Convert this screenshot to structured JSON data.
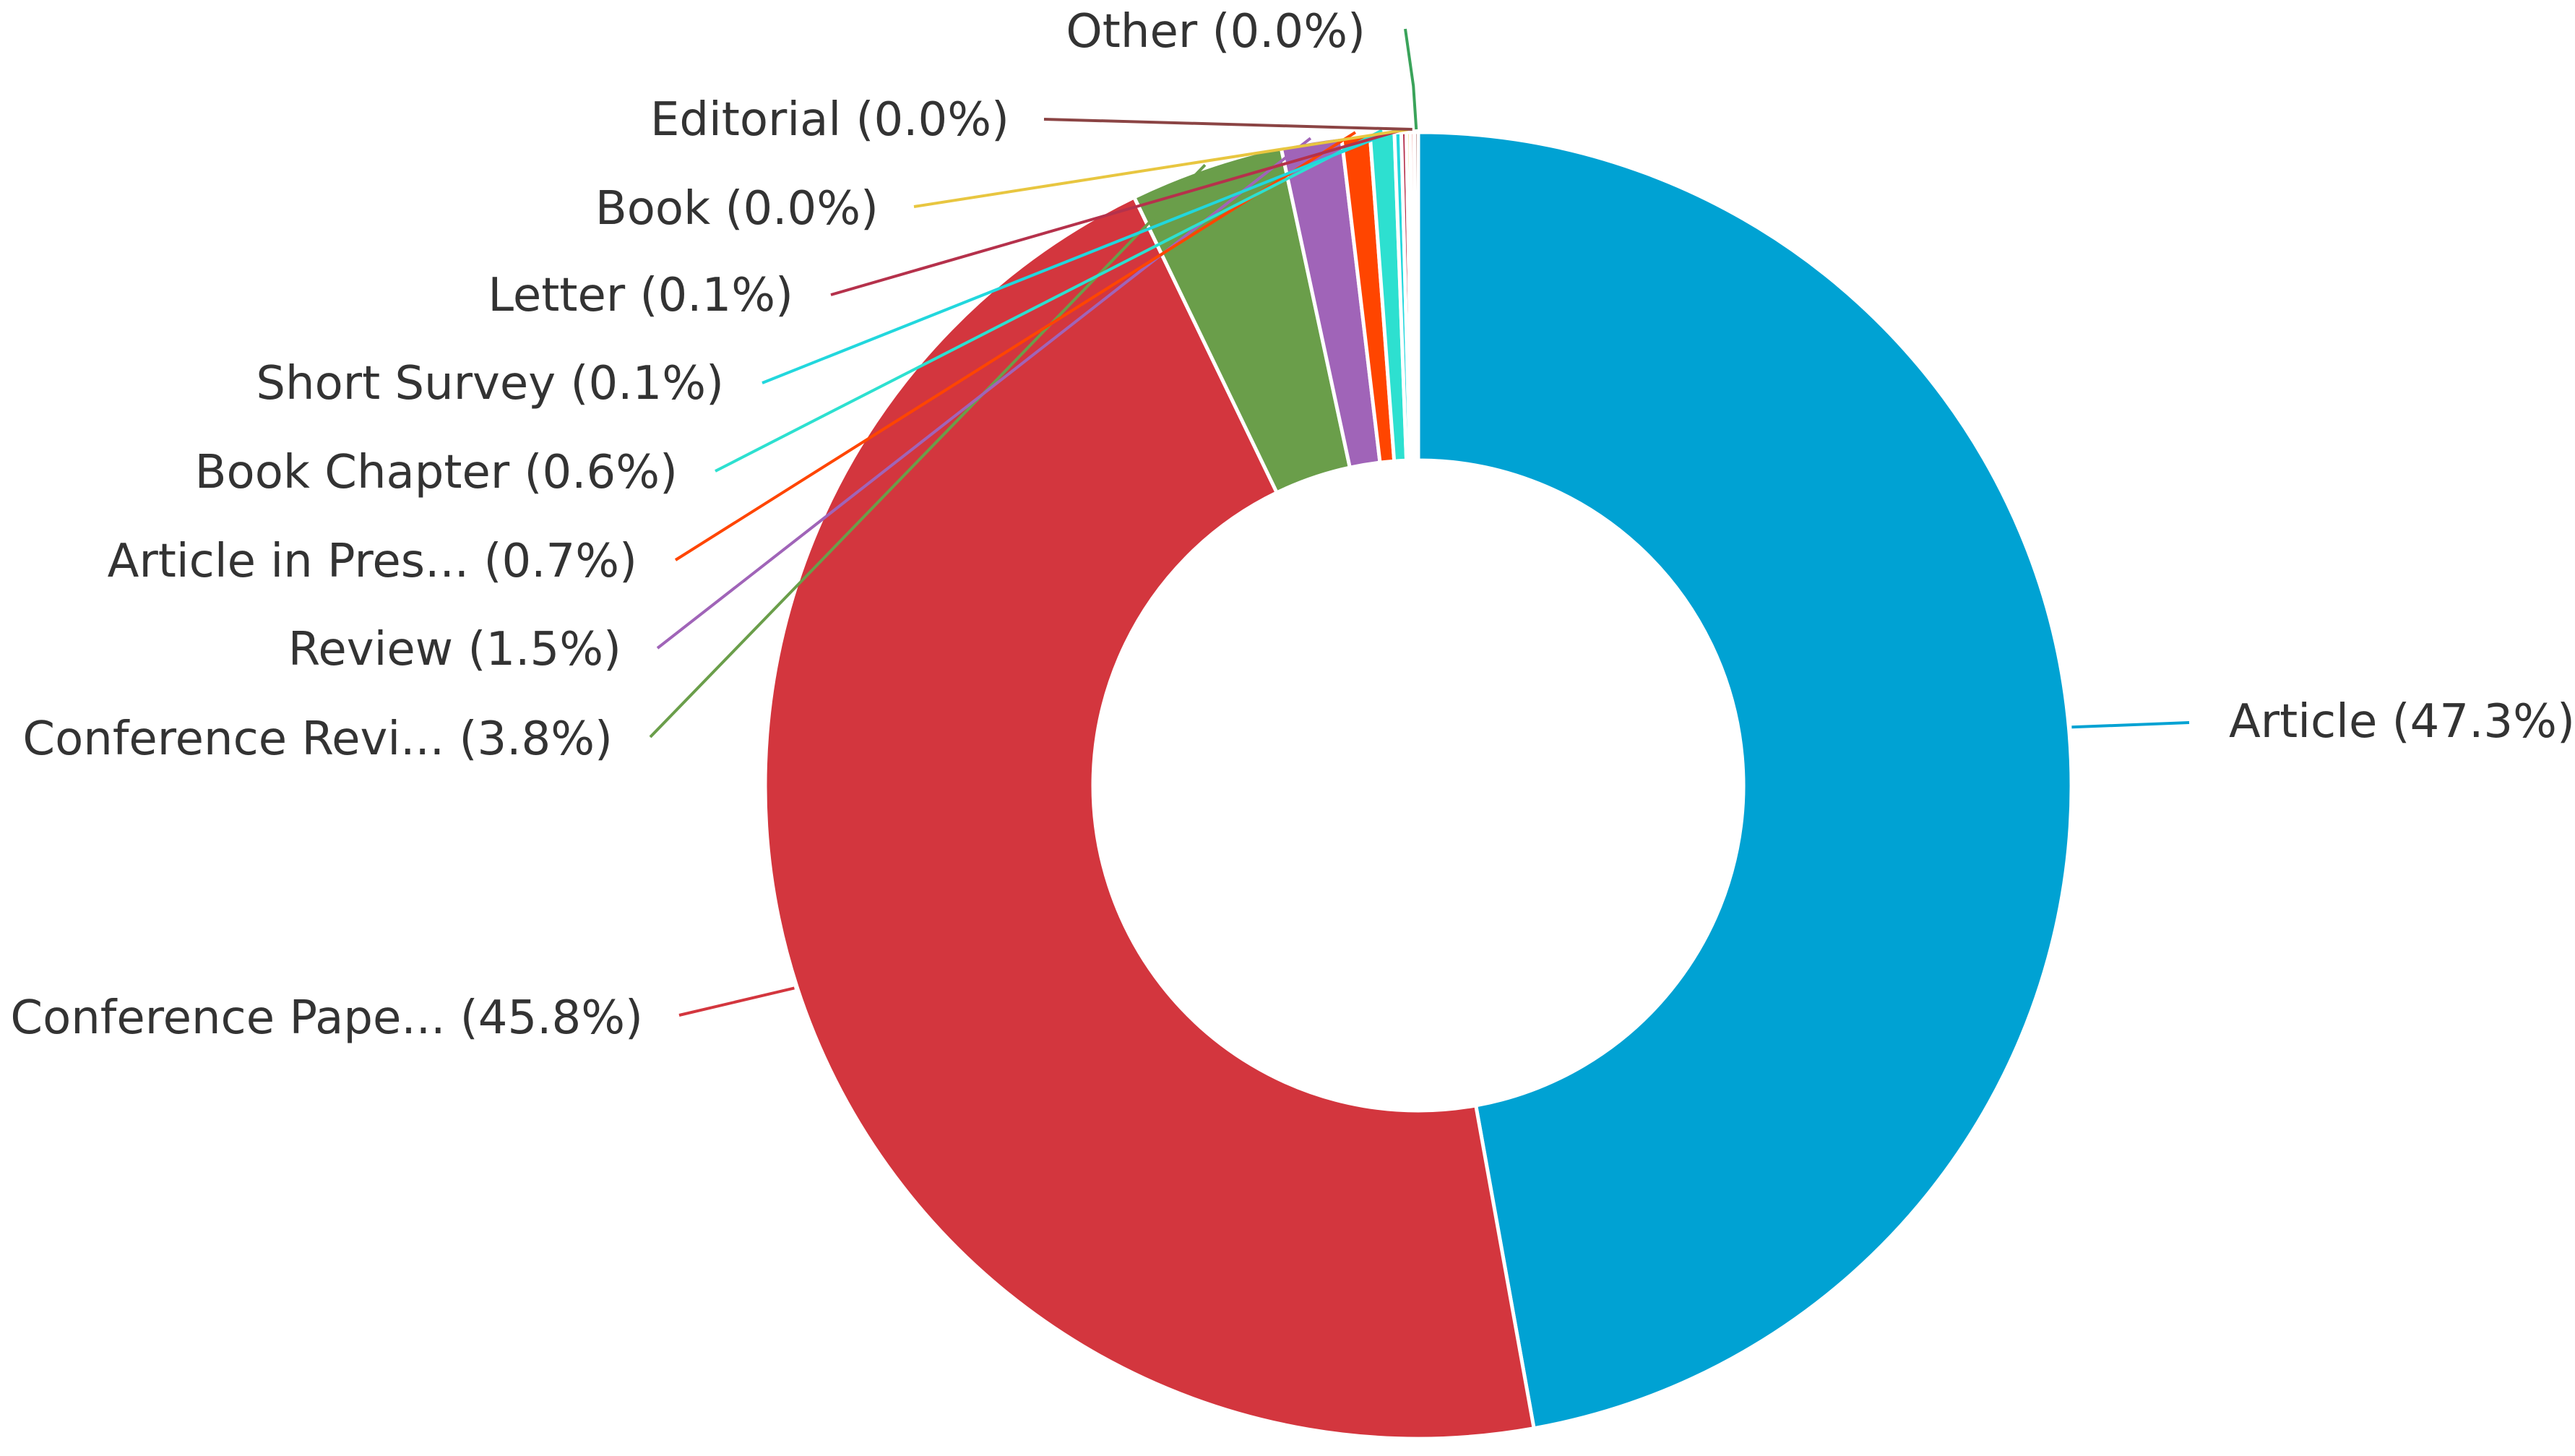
{
  "chart_data": {
    "type": "pie",
    "donut": true,
    "slices": [
      {
        "label": "Article",
        "display_label": "Article (47.3%)",
        "value": 47.3,
        "color": "#00A2D3"
      },
      {
        "label": "Conference Pape...",
        "display_label": "Conference Pape... (45.8%)",
        "value": 45.8,
        "color": "#D3363E"
      },
      {
        "label": "Conference Revi...",
        "display_label": "Conference Revi... (3.8%)",
        "value": 3.8,
        "color": "#6A9E4A"
      },
      {
        "label": "Review",
        "display_label": "Review (1.5%)",
        "value": 1.5,
        "color": "#A064B8"
      },
      {
        "label": "Article in Pres...",
        "display_label": "Article in Pres... (0.7%)",
        "value": 0.7,
        "color": "#FF4500"
      },
      {
        "label": "Book Chapter",
        "display_label": "Book Chapter (0.6%)",
        "value": 0.6,
        "color": "#2DE0D0"
      },
      {
        "label": "Short Survey",
        "display_label": "Short Survey (0.1%)",
        "value": 0.1,
        "color": "#22D7DD"
      },
      {
        "label": "Letter",
        "display_label": "Letter (0.1%)",
        "value": 0.1,
        "color": "#B5314B"
      },
      {
        "label": "Book",
        "display_label": "Book (0.0%)",
        "value": 0.0,
        "color": "#E8C640"
      },
      {
        "label": "Editorial",
        "display_label": "Editorial (0.0%)",
        "value": 0.0,
        "color": "#F48A86"
      },
      {
        "label": "Other",
        "display_label": "Other (0.0%)",
        "value": 0.0,
        "color": "#8B4444"
      }
    ],
    "extra_connector_colors": {
      "Editorial": "#8B4444",
      "Other": "#3AA35A"
    }
  }
}
